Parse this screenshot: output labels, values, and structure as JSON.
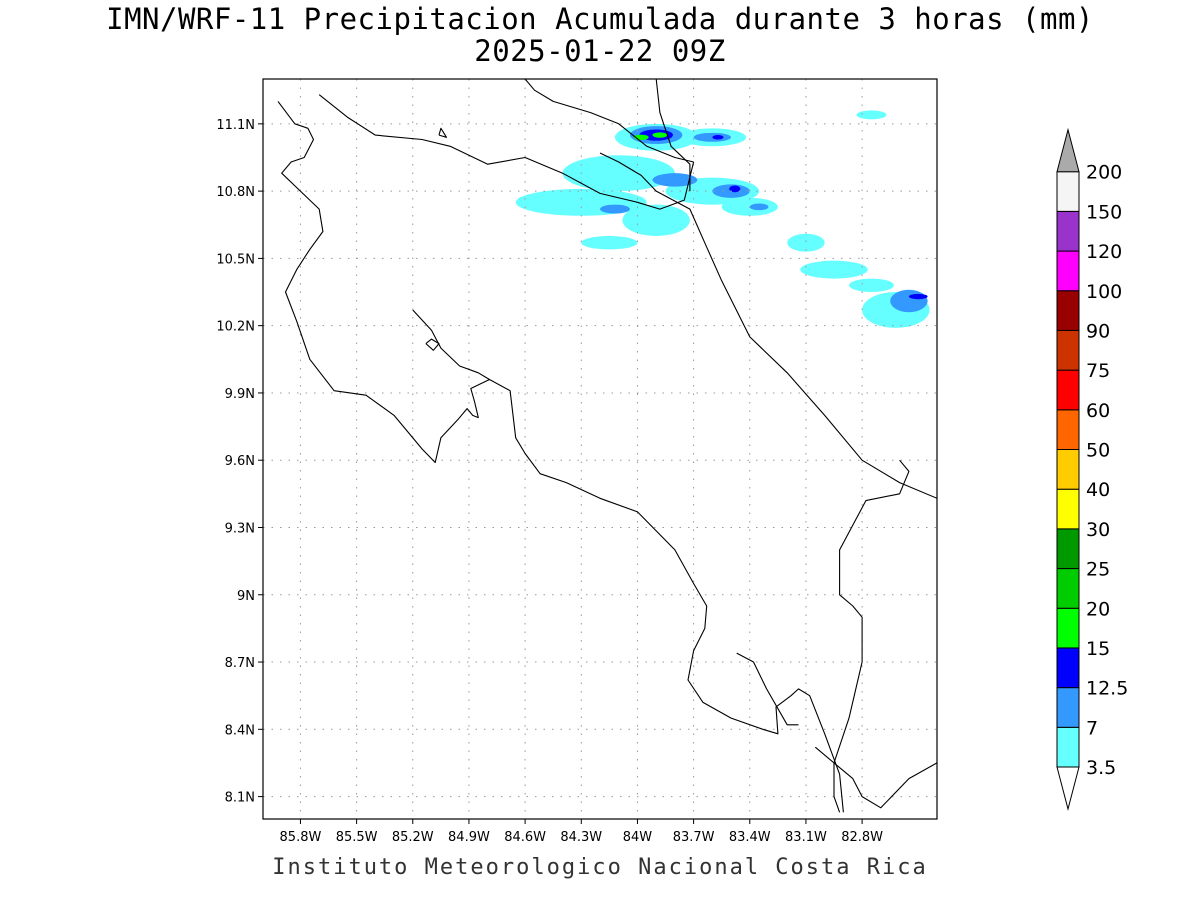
{
  "title": {
    "line1": "IMN/WRF-11 Precipitacion Acumulada durante 3 horas (mm)",
    "line2": "2025-01-22 09Z"
  },
  "footer": "Instituto Meteorologico Nacional Costa Rica",
  "map": {
    "lon_range": [
      -86.0,
      -82.4
    ],
    "lat_range": [
      8.0,
      11.3
    ],
    "lat_ticks": [
      {
        "value": 11.1,
        "label": "11.1N"
      },
      {
        "value": 10.8,
        "label": "10.8N"
      },
      {
        "value": 10.5,
        "label": "10.5N"
      },
      {
        "value": 10.2,
        "label": "10.2N"
      },
      {
        "value": 9.9,
        "label": "9.9N"
      },
      {
        "value": 9.6,
        "label": "9.6N"
      },
      {
        "value": 9.3,
        "label": "9.3N"
      },
      {
        "value": 9.0,
        "label": "9N"
      },
      {
        "value": 8.7,
        "label": "8.7N"
      },
      {
        "value": 8.4,
        "label": "8.4N"
      },
      {
        "value": 8.1,
        "label": "8.1N"
      }
    ],
    "lon_ticks": [
      {
        "value": -85.8,
        "label": "85.8W"
      },
      {
        "value": -85.5,
        "label": "85.5W"
      },
      {
        "value": -85.2,
        "label": "85.2W"
      },
      {
        "value": -84.9,
        "label": "84.9W"
      },
      {
        "value": -84.6,
        "label": "84.6W"
      },
      {
        "value": -84.3,
        "label": "84.3W"
      },
      {
        "value": -84.0,
        "label": "84W"
      },
      {
        "value": -83.7,
        "label": "83.7W"
      },
      {
        "value": -83.4,
        "label": "83.4W"
      },
      {
        "value": -83.1,
        "label": "83.1W"
      },
      {
        "value": -82.8,
        "label": "82.8W"
      }
    ],
    "grid": true,
    "coastline": [
      [
        -85.92,
        11.2
      ],
      [
        -85.83,
        11.1
      ],
      [
        -85.76,
        11.08
      ],
      [
        -85.73,
        11.03
      ],
      [
        -85.78,
        10.95
      ],
      [
        -85.85,
        10.93
      ],
      [
        -85.9,
        10.88
      ],
      [
        -85.8,
        10.8
      ],
      [
        -85.7,
        10.72
      ],
      [
        -85.68,
        10.62
      ],
      [
        -85.75,
        10.54
      ],
      [
        -85.82,
        10.45
      ],
      [
        -85.88,
        10.35
      ],
      [
        -85.82,
        10.22
      ],
      [
        -85.75,
        10.05
      ],
      [
        -85.62,
        9.91
      ],
      [
        -85.45,
        9.89
      ],
      [
        -85.3,
        9.8
      ],
      [
        -85.15,
        9.65
      ],
      [
        -85.08,
        9.59
      ],
      [
        -85.05,
        9.7
      ],
      [
        -84.96,
        9.78
      ],
      [
        -84.91,
        9.83
      ],
      [
        -84.88,
        9.8
      ],
      [
        -84.85,
        9.79
      ],
      [
        -84.87,
        9.86
      ],
      [
        -84.89,
        9.92
      ],
      [
        -84.79,
        9.96
      ],
      [
        -84.68,
        9.91
      ],
      [
        -84.65,
        9.7
      ],
      [
        -84.6,
        9.63
      ],
      [
        -84.52,
        9.54
      ],
      [
        -84.38,
        9.5
      ],
      [
        -84.2,
        9.43
      ],
      [
        -84.0,
        9.37
      ],
      [
        -83.8,
        9.2
      ],
      [
        -83.7,
        9.05
      ],
      [
        -83.63,
        8.95
      ],
      [
        -83.64,
        8.85
      ],
      [
        -83.7,
        8.75
      ],
      [
        -83.73,
        8.62
      ],
      [
        -83.65,
        8.52
      ],
      [
        -83.5,
        8.45
      ],
      [
        -83.33,
        8.4
      ],
      [
        -83.25,
        8.38
      ],
      [
        -83.26,
        8.5
      ],
      [
        -83.18,
        8.55
      ],
      [
        -83.14,
        8.58
      ],
      [
        -83.08,
        8.55
      ],
      [
        -83.0,
        8.38
      ],
      [
        -82.92,
        8.2
      ],
      [
        -82.9,
        8.03
      ]
    ],
    "golfo_nicoya_inner": [
      [
        -85.2,
        10.27
      ],
      [
        -85.1,
        10.18
      ],
      [
        -85.05,
        10.1
      ],
      [
        -84.95,
        10.02
      ],
      [
        -84.85,
        9.99
      ],
      [
        -84.79,
        9.96
      ]
    ],
    "island_chira": [
      [
        -85.13,
        10.12
      ],
      [
        -85.1,
        10.14
      ],
      [
        -85.06,
        10.12
      ],
      [
        -85.09,
        10.09
      ],
      [
        -85.13,
        10.12
      ]
    ],
    "island_north": [
      [
        -85.06,
        11.05
      ],
      [
        -85.05,
        11.08
      ],
      [
        -85.02,
        11.04
      ],
      [
        -85.06,
        11.05
      ]
    ],
    "osa_coast": [
      [
        -83.47,
        8.74
      ],
      [
        -83.38,
        8.7
      ],
      [
        -83.31,
        8.58
      ],
      [
        -83.2,
        8.42
      ],
      [
        -83.14,
        8.42
      ]
    ],
    "caribbean_coast": [
      [
        -84.2,
        10.97
      ],
      [
        -84.1,
        10.93
      ],
      [
        -83.98,
        10.87
      ],
      [
        -83.9,
        10.8
      ],
      [
        -83.72,
        10.72
      ],
      [
        -83.63,
        10.55
      ],
      [
        -83.55,
        10.4
      ],
      [
        -83.4,
        10.15
      ],
      [
        -83.2,
        9.99
      ],
      [
        -83.0,
        9.8
      ],
      [
        -82.8,
        9.6
      ],
      [
        -82.6,
        9.5
      ],
      [
        -82.4,
        9.43
      ]
    ],
    "nicaragua_border": [
      [
        -85.7,
        11.23
      ],
      [
        -85.55,
        11.13
      ],
      [
        -85.4,
        11.05
      ],
      [
        -85.15,
        11.03
      ],
      [
        -85.0,
        11.0
      ],
      [
        -84.8,
        10.92
      ],
      [
        -84.6,
        10.95
      ],
      [
        -84.4,
        10.88
      ],
      [
        -84.2,
        10.79
      ],
      [
        -84.0,
        10.75
      ],
      [
        -83.88,
        10.72
      ],
      [
        -83.75,
        10.76
      ],
      [
        -83.7,
        10.93
      ]
    ],
    "nicaragua_coast_north": [
      [
        -84.6,
        11.3
      ],
      [
        -84.55,
        11.25
      ],
      [
        -84.45,
        11.2
      ],
      [
        -84.25,
        11.15
      ],
      [
        -84.1,
        11.1
      ],
      [
        -83.95,
        11.0
      ],
      [
        -83.8,
        10.95
      ],
      [
        -83.7,
        10.93
      ]
    ],
    "river_north": [
      [
        -83.9,
        11.3
      ],
      [
        -83.88,
        11.15
      ],
      [
        -83.82,
        11.0
      ],
      [
        -83.72,
        10.92
      ],
      [
        -83.72,
        10.8
      ]
    ],
    "panama_border": [
      [
        -82.6,
        9.6
      ],
      [
        -82.55,
        9.55
      ],
      [
        -82.6,
        9.45
      ],
      [
        -82.78,
        9.42
      ],
      [
        -82.92,
        9.2
      ],
      [
        -82.92,
        9.0
      ],
      [
        -82.85,
        8.95
      ],
      [
        -82.8,
        8.9
      ],
      [
        -82.8,
        8.7
      ],
      [
        -82.87,
        8.45
      ],
      [
        -82.95,
        8.25
      ],
      [
        -82.95,
        8.1
      ],
      [
        -82.92,
        8.03
      ]
    ],
    "panama_coast": [
      [
        -83.05,
        8.32
      ],
      [
        -82.95,
        8.25
      ],
      [
        -82.85,
        8.18
      ],
      [
        -82.8,
        8.1
      ],
      [
        -82.7,
        8.05
      ],
      [
        -82.55,
        8.18
      ],
      [
        -82.4,
        8.25
      ]
    ],
    "precip_cells": [
      {
        "lon": -83.9,
        "lat": 11.04,
        "rx": 0.22,
        "ry": 0.06,
        "level": 0
      },
      {
        "lon": -83.6,
        "lat": 11.04,
        "rx": 0.18,
        "ry": 0.04,
        "level": 0
      },
      {
        "lon": -84.1,
        "lat": 10.88,
        "rx": 0.3,
        "ry": 0.08,
        "level": 0
      },
      {
        "lon": -84.3,
        "lat": 10.75,
        "rx": 0.35,
        "ry": 0.06,
        "level": 0
      },
      {
        "lon": -83.9,
        "lat": 10.67,
        "rx": 0.18,
        "ry": 0.07,
        "level": 0
      },
      {
        "lon": -84.15,
        "lat": 10.57,
        "rx": 0.15,
        "ry": 0.03,
        "level": 0
      },
      {
        "lon": -83.6,
        "lat": 10.8,
        "rx": 0.25,
        "ry": 0.06,
        "level": 0
      },
      {
        "lon": -83.4,
        "lat": 10.73,
        "rx": 0.15,
        "ry": 0.04,
        "level": 0
      },
      {
        "lon": -83.1,
        "lat": 10.57,
        "rx": 0.1,
        "ry": 0.04,
        "level": 0
      },
      {
        "lon": -82.95,
        "lat": 10.45,
        "rx": 0.18,
        "ry": 0.04,
        "level": 0
      },
      {
        "lon": -82.75,
        "lat": 10.38,
        "rx": 0.12,
        "ry": 0.03,
        "level": 0
      },
      {
        "lon": -82.62,
        "lat": 10.27,
        "rx": 0.18,
        "ry": 0.08,
        "level": 0
      },
      {
        "lon": -82.75,
        "lat": 11.14,
        "rx": 0.08,
        "ry": 0.02,
        "level": 0
      },
      {
        "lon": -83.9,
        "lat": 11.05,
        "rx": 0.14,
        "ry": 0.04,
        "level": 1
      },
      {
        "lon": -83.6,
        "lat": 11.04,
        "rx": 0.1,
        "ry": 0.02,
        "level": 1
      },
      {
        "lon": -83.8,
        "lat": 10.85,
        "rx": 0.12,
        "ry": 0.03,
        "level": 1
      },
      {
        "lon": -83.5,
        "lat": 10.8,
        "rx": 0.1,
        "ry": 0.03,
        "level": 1
      },
      {
        "lon": -84.12,
        "lat": 10.72,
        "rx": 0.08,
        "ry": 0.02,
        "level": 1
      },
      {
        "lon": -82.55,
        "lat": 10.31,
        "rx": 0.1,
        "ry": 0.05,
        "level": 1
      },
      {
        "lon": -83.35,
        "lat": 10.73,
        "rx": 0.05,
        "ry": 0.015,
        "level": 1
      },
      {
        "lon": -83.9,
        "lat": 11.05,
        "rx": 0.09,
        "ry": 0.025,
        "level": 2
      },
      {
        "lon": -83.48,
        "lat": 10.81,
        "rx": 0.03,
        "ry": 0.015,
        "level": 2
      },
      {
        "lon": -82.5,
        "lat": 10.33,
        "rx": 0.05,
        "ry": 0.012,
        "level": 2
      },
      {
        "lon": -83.57,
        "lat": 11.04,
        "rx": 0.03,
        "ry": 0.01,
        "level": 2
      },
      {
        "lon": -83.98,
        "lat": 11.04,
        "rx": 0.04,
        "ry": 0.012,
        "level": 3
      },
      {
        "lon": -83.88,
        "lat": 11.05,
        "rx": 0.04,
        "ry": 0.012,
        "level": 3
      }
    ]
  },
  "legend": {
    "levels": [
      {
        "label": "3.5",
        "color": "#66ffff"
      },
      {
        "label": "7",
        "color": "#3399ff"
      },
      {
        "label": "12.5",
        "color": "#0000ff"
      },
      {
        "label": "15",
        "color": "#00ff00"
      },
      {
        "label": "20",
        "color": "#00cc00"
      },
      {
        "label": "25",
        "color": "#009900"
      },
      {
        "label": "30",
        "color": "#ffff00"
      },
      {
        "label": "40",
        "color": "#ffcc00"
      },
      {
        "label": "50",
        "color": "#ff6600"
      },
      {
        "label": "60",
        "color": "#ff0000"
      },
      {
        "label": "75",
        "color": "#cc3300"
      },
      {
        "label": "90",
        "color": "#990000"
      },
      {
        "label": "100",
        "color": "#ff00ff"
      },
      {
        "label": "120",
        "color": "#9933cc"
      },
      {
        "label": "150",
        "color": "#f5f5f5"
      },
      {
        "label": "200",
        "color": "#aaaaaa"
      }
    ],
    "below_color": "#ffffff"
  }
}
